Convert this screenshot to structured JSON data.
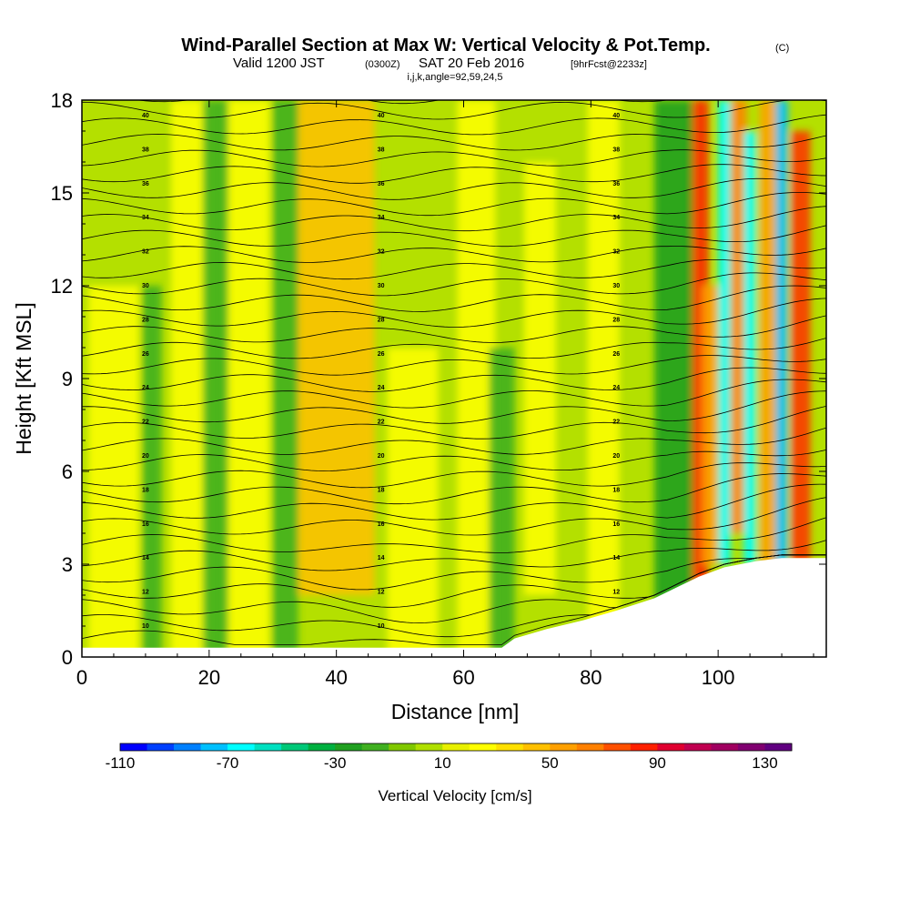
{
  "header": {
    "title_main": "Wind-Parallel Section at Max W: Vertical Velocity & Pot.Temp.",
    "title_mark": "(C)",
    "valid_prefix": "Valid 1200 JST",
    "valid_zulu": "(0300Z)",
    "valid_date": "SAT 20 Feb 2016",
    "forecast_tag": "[9hrFcst@2233z]",
    "indices": "i,j,k,angle=92,59,24,5"
  },
  "chart_data": {
    "type": "heatmap",
    "xlabel": "Distance [nm]",
    "ylabel": "Height [Kft MSL]",
    "xlim": [
      0,
      117
    ],
    "ylim": [
      0,
      18
    ],
    "xticks": [
      0,
      20,
      40,
      60,
      80,
      100
    ],
    "yticks": [
      0,
      3,
      6,
      9,
      12,
      15,
      18
    ],
    "colorbar": {
      "label": "Vertical Velocity [cm/s]",
      "min": -110,
      "max": 140,
      "step": 10,
      "tick_values": [
        -110,
        -70,
        -30,
        10,
        50,
        90,
        130
      ],
      "colors": [
        "#0000ff",
        "#0040ff",
        "#0080ff",
        "#00c0ff",
        "#00ffff",
        "#00e0c0",
        "#00c878",
        "#00b040",
        "#20a020",
        "#40b020",
        "#80c800",
        "#b0e000",
        "#e8f000",
        "#ffff00",
        "#ffe000",
        "#ffc000",
        "#ffa000",
        "#ff8000",
        "#ff5000",
        "#ff2000",
        "#e00030",
        "#c00050",
        "#a00060",
        "#800070",
        "#600080"
      ]
    },
    "updraft_bands": [
      {
        "x": 5,
        "y": [
          0,
          12
        ],
        "w": 8
      },
      {
        "x": 17,
        "y": [
          0,
          18
        ],
        "w": 6
      },
      {
        "x": 26,
        "y": [
          0,
          18
        ],
        "w": 7
      },
      {
        "x": 40,
        "y": [
          2,
          18
        ],
        "w": 12
      },
      {
        "x": 52,
        "y": [
          0,
          10
        ],
        "w": 8
      },
      {
        "x": 62,
        "y": [
          0,
          18
        ],
        "w": 6
      },
      {
        "x": 72,
        "y": [
          2,
          16
        ],
        "w": 5
      },
      {
        "x": 82,
        "y": [
          0,
          18
        ],
        "w": 5
      },
      {
        "x": 97,
        "y": [
          2,
          18
        ],
        "w": 3
      },
      {
        "x": 99,
        "y": [
          3,
          12
        ],
        "w": 3
      },
      {
        "x": 103,
        "y": [
          4,
          18
        ],
        "w": 3
      },
      {
        "x": 108,
        "y": [
          3,
          18
        ],
        "w": 3
      },
      {
        "x": 113,
        "y": [
          3,
          17
        ],
        "w": 3
      }
    ],
    "downdraft_bands": [
      {
        "x": 11,
        "y": [
          0,
          12
        ],
        "w": 3
      },
      {
        "x": 21,
        "y": [
          0,
          18
        ],
        "w": 4
      },
      {
        "x": 32,
        "y": [
          0,
          18
        ],
        "w": 4
      },
      {
        "x": 66,
        "y": [
          0,
          10
        ],
        "w": 4
      },
      {
        "x": 93,
        "y": [
          0,
          18
        ],
        "w": 6
      },
      {
        "x": 101,
        "y": [
          3,
          18
        ],
        "w": 2
      },
      {
        "x": 105,
        "y": [
          3,
          17
        ],
        "w": 2
      },
      {
        "x": 110,
        "y": [
          2,
          18
        ],
        "w": 2
      }
    ],
    "terrain": [
      [
        0,
        0.3
      ],
      [
        66,
        0.3
      ],
      [
        68,
        0.6
      ],
      [
        73,
        0.9
      ],
      [
        79,
        1.2
      ],
      [
        84,
        1.5
      ],
      [
        90,
        1.9
      ],
      [
        94,
        2.3
      ],
      [
        97,
        2.6
      ],
      [
        101,
        2.9
      ],
      [
        106,
        3.1
      ],
      [
        110,
        3.2
      ],
      [
        117,
        3.2
      ]
    ],
    "theta_contour_labels": [
      "10",
      "12",
      "14",
      "16",
      "18",
      "20",
      "22",
      "24",
      "26",
      "28",
      "30",
      "32",
      "34",
      "36",
      "38",
      "40"
    ],
    "theta_levels": {
      "start": 8,
      "end": 42,
      "step": 1
    }
  }
}
